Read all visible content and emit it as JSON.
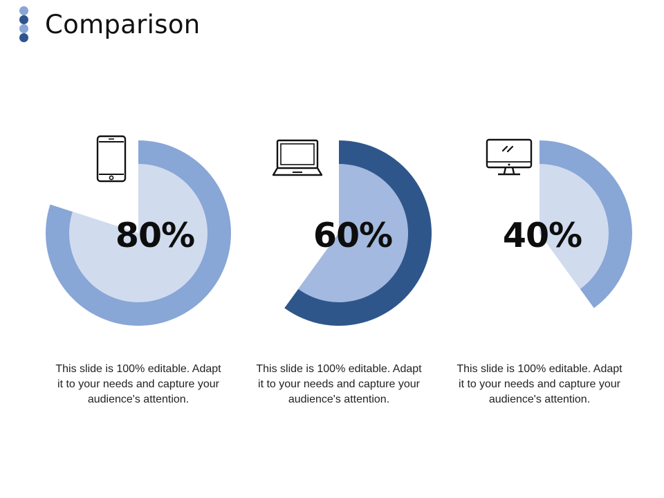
{
  "title": "Comparison",
  "colors": {
    "dot_light": "#8aa6d6",
    "dot_dark": "#2f558e",
    "ring_light": "#88a6d6",
    "ring_dark": "#2f568b",
    "inner_pale": "#d0dbee",
    "inner_mid": "#a3b9df",
    "text": "#111111"
  },
  "title_dots": [
    "#8aa6d6",
    "#2f558e",
    "#8aa6d6",
    "#2f558e"
  ],
  "chart_data": {
    "type": "pie",
    "charts": [
      {
        "icon": "smartphone-icon",
        "label": "80%",
        "value": 80,
        "ring_color": "#88a6d6",
        "inner_color": "#d0dbee",
        "description": "This slide is 100% editable. Adapt it to your needs and capture your audience's attention."
      },
      {
        "icon": "laptop-icon",
        "label": "60%",
        "value": 60,
        "ring_color": "#2f568b",
        "inner_color": "#a3b9df",
        "description": "This slide is 100% editable. Adapt it to your needs and capture your audience's attention."
      },
      {
        "icon": "desktop-monitor-icon",
        "label": "40%",
        "value": 40,
        "ring_color": "#88a6d6",
        "inner_color": "#d0dbee",
        "description": "This slide is 100% editable. Adapt it to your needs and capture your audience's attention."
      }
    ]
  }
}
